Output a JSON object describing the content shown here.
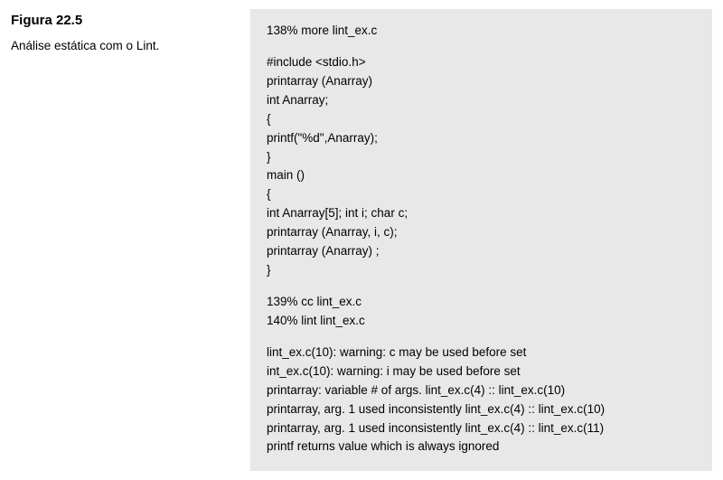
{
  "figure": {
    "title": "Figura 22.5",
    "caption": "Análise estática com o Lint."
  },
  "code": {
    "background_color": "#e8e8e8",
    "text_color": "#000000",
    "font_size_pt": 10,
    "lines": [
      "138% more lint_ex.c",
      "",
      "#include <stdio.h>",
      "printarray (Anarray)",
      "int Anarray;",
      "{",
      "printf(\"%d\",Anarray);",
      "}",
      "main ()",
      "{",
      "int Anarray[5]; int i; char c;",
      "printarray (Anarray, i, c);",
      "printarray (Anarray) ;",
      "}",
      "",
      "139% cc lint_ex.c",
      "140% lint lint_ex.c",
      "",
      "lint_ex.c(10): warning: c may be used before set",
      "int_ex.c(10): warning: i may be used before set",
      "printarray: variable # of args. lint_ex.c(4) :: lint_ex.c(10)",
      "printarray, arg. 1 used inconsistently lint_ex.c(4) :: lint_ex.c(10)",
      "printarray, arg. 1 used inconsistently lint_ex.c(4) :: lint_ex.c(11)",
      "printf returns value which is always ignored"
    ]
  }
}
